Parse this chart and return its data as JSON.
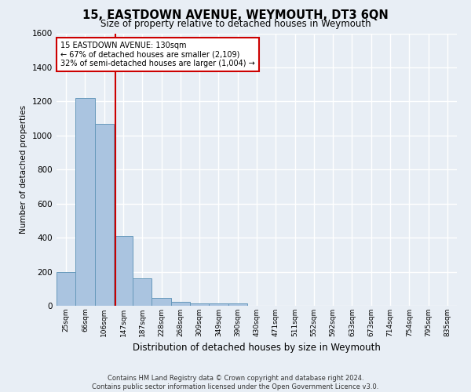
{
  "title": "15, EASTDOWN AVENUE, WEYMOUTH, DT3 6QN",
  "subtitle": "Size of property relative to detached houses in Weymouth",
  "xlabel": "Distribution of detached houses by size in Weymouth",
  "ylabel": "Number of detached properties",
  "footer_line1": "Contains HM Land Registry data © Crown copyright and database right 2024.",
  "footer_line2": "Contains public sector information licensed under the Open Government Licence v3.0.",
  "categories": [
    "25sqm",
    "66sqm",
    "106sqm",
    "147sqm",
    "187sqm",
    "228sqm",
    "268sqm",
    "309sqm",
    "349sqm",
    "390sqm",
    "430sqm",
    "471sqm",
    "511sqm",
    "552sqm",
    "592sqm",
    "633sqm",
    "673sqm",
    "714sqm",
    "754sqm",
    "795sqm",
    "835sqm"
  ],
  "values": [
    200,
    1220,
    1070,
    410,
    160,
    48,
    25,
    15,
    12,
    15,
    0,
    0,
    0,
    0,
    0,
    0,
    0,
    0,
    0,
    0,
    0
  ],
  "bar_color": "#aac4e0",
  "bar_edge_color": "#6699bb",
  "background_color": "#e8eef5",
  "grid_color": "#ffffff",
  "annotation_text": "15 EASTDOWN AVENUE: 130sqm\n← 67% of detached houses are smaller (2,109)\n32% of semi-detached houses are larger (1,004) →",
  "annotation_box_facecolor": "#ffffff",
  "annotation_box_edgecolor": "#cc0000",
  "red_line_color": "#cc0000",
  "ylim": [
    0,
    1600
  ],
  "yticks": [
    0,
    200,
    400,
    600,
    800,
    1000,
    1200,
    1400,
    1600
  ]
}
